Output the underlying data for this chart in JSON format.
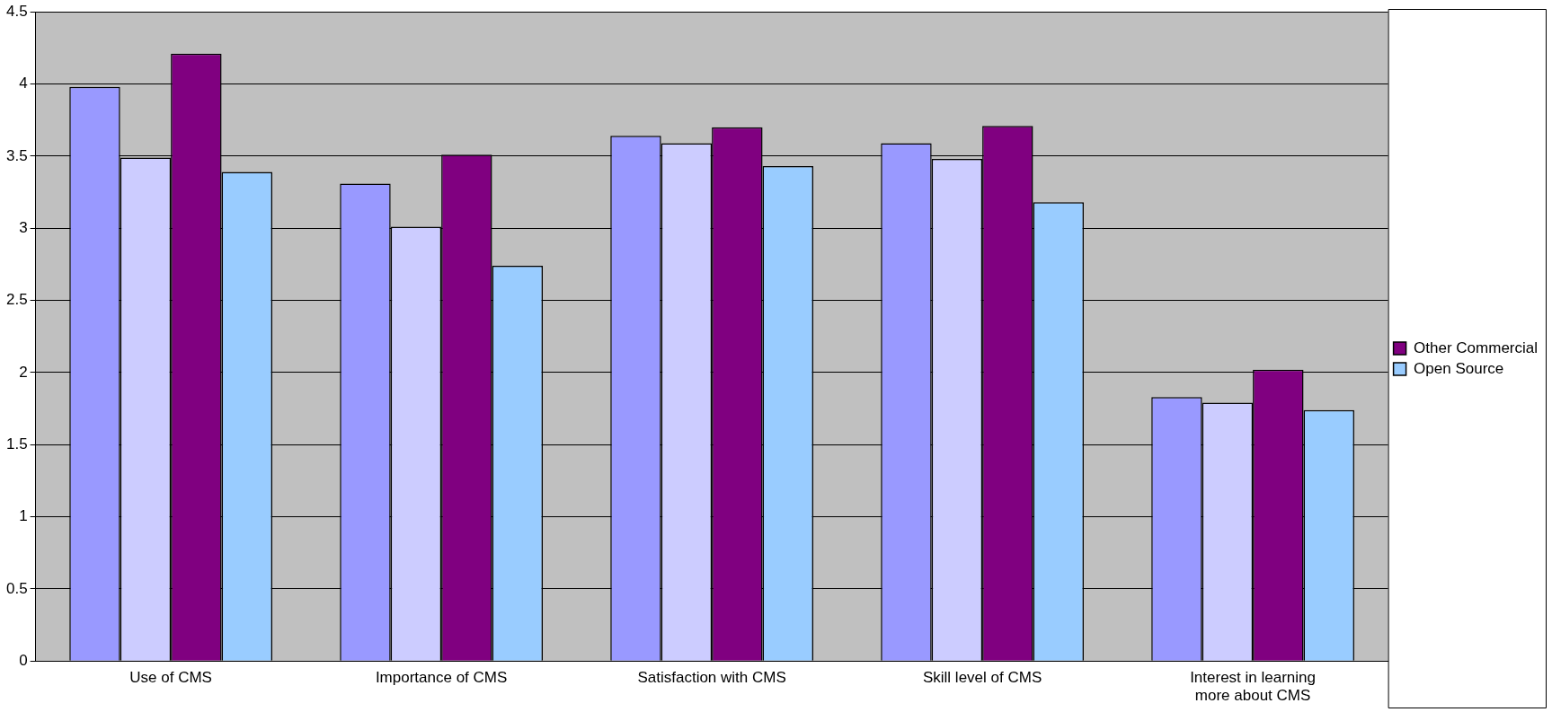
{
  "chart_data": {
    "type": "bar",
    "categories": [
      "Use of CMS",
      "Importance of CMS",
      "Satisfaction with CMS",
      "Skill level of CMS",
      "Interest in learning more about CMS"
    ],
    "series": [
      {
        "color": "#9999ff",
        "values": [
          3.98,
          3.31,
          3.64,
          3.59,
          1.83
        ]
      },
      {
        "color": "#ccccff",
        "values": [
          3.49,
          3.01,
          3.59,
          3.48,
          1.79
        ]
      },
      {
        "name": "Other Commercial",
        "color": "#800080",
        "values": [
          4.21,
          3.51,
          3.7,
          3.71,
          2.02
        ]
      },
      {
        "name": "Open Source",
        "color": "#99ccff",
        "values": [
          3.39,
          2.74,
          3.43,
          3.18,
          1.74
        ]
      }
    ],
    "ylim": [
      0,
      4.5
    ],
    "yticks": [
      0,
      0.5,
      1,
      1.5,
      2,
      2.5,
      3,
      3.5,
      4,
      4.5
    ],
    "grid": "y",
    "legend": "right"
  }
}
